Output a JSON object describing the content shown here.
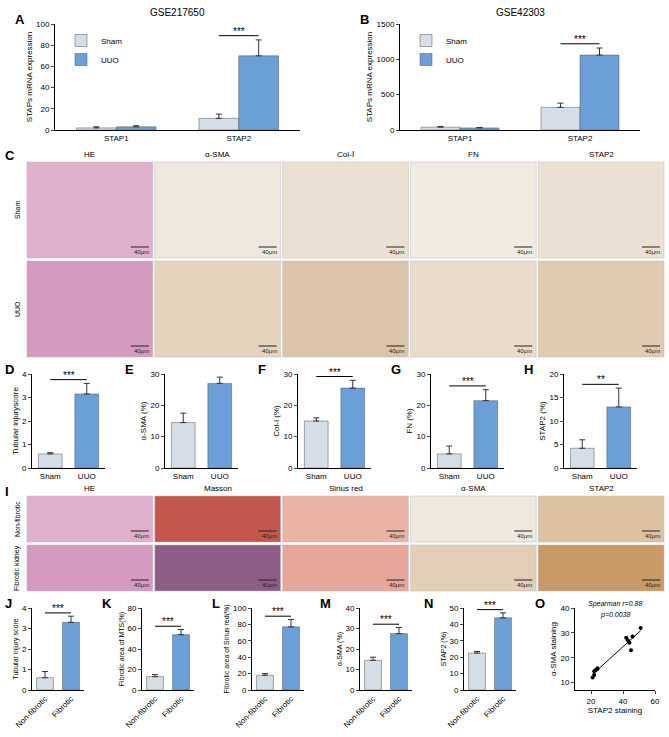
{
  "chart_data": [
    {
      "panel": "A",
      "type": "bar",
      "title": "GSE217650",
      "y_label": "STAPs mRNA expression",
      "categories": [
        "STAP1",
        "STAP2"
      ],
      "series": [
        {
          "name": "Sham",
          "color": "#d5dde6",
          "values": [
            2,
            11
          ],
          "errors": [
            1,
            4
          ]
        },
        {
          "name": "UUO",
          "color": "#6b9fd8",
          "values": [
            3,
            70
          ],
          "errors": [
            1,
            15
          ]
        }
      ],
      "ylim": [
        0,
        100
      ],
      "yticks": [
        0,
        20,
        40,
        60,
        80,
        100
      ],
      "legend": "upper left",
      "significance": [
        {
          "category": "STAP2",
          "label": "***"
        }
      ]
    },
    {
      "panel": "B",
      "type": "bar",
      "title": "GSE42303",
      "y_label": "STAPs mRNA expression",
      "categories": [
        "STAP1",
        "STAP2"
      ],
      "series": [
        {
          "name": "Sham",
          "color": "#d5dde6",
          "values": [
            40,
            320
          ],
          "errors": [
            10,
            60
          ]
        },
        {
          "name": "UUO",
          "color": "#6b9fd8",
          "values": [
            30,
            1060
          ],
          "errors": [
            5,
            100
          ]
        }
      ],
      "ylim": [
        0,
        1500
      ],
      "yticks": [
        0,
        500,
        1000,
        1500
      ],
      "legend": "upper left",
      "significance": [
        {
          "category": "STAP2",
          "label": "***"
        }
      ]
    },
    {
      "panel": "D",
      "type": "bar",
      "y_label": "Tubular injuryscore",
      "categories": [
        "Sham",
        "UUO"
      ],
      "values": [
        0.6,
        3.15
      ],
      "errors": [
        0.05,
        0.45
      ],
      "colors": [
        "#d5dde6",
        "#6b9fd8"
      ],
      "ylim": [
        0,
        4
      ],
      "yticks": [
        0,
        1,
        2,
        3,
        4
      ],
      "significance": "***"
    },
    {
      "panel": "E",
      "type": "bar",
      "y_label": "α-SMA (%)",
      "categories": [
        "Sham",
        "UUO"
      ],
      "values": [
        14.5,
        27
      ],
      "errors": [
        3,
        2
      ],
      "colors": [
        "#d5dde6",
        "#6b9fd8"
      ],
      "ylim": [
        0,
        30
      ],
      "yticks": [
        0,
        10,
        20,
        30
      ],
      "significance": "***"
    },
    {
      "panel": "F",
      "type": "bar",
      "y_label": "Col-I (%)",
      "categories": [
        "Sham",
        "UUO"
      ],
      "values": [
        15,
        25.5
      ],
      "errors": [
        1,
        2.5
      ],
      "colors": [
        "#d5dde6",
        "#6b9fd8"
      ],
      "ylim": [
        0,
        30
      ],
      "yticks": [
        0,
        10,
        20,
        30
      ],
      "significance": "***"
    },
    {
      "panel": "G",
      "type": "bar",
      "y_label": "FN (%)",
      "categories": [
        "Sham",
        "UUO"
      ],
      "values": [
        4.5,
        21.5
      ],
      "errors": [
        2.5,
        3.5
      ],
      "colors": [
        "#d5dde6",
        "#6b9fd8"
      ],
      "ylim": [
        0,
        30
      ],
      "yticks": [
        0,
        10,
        20,
        30
      ],
      "significance": "***"
    },
    {
      "panel": "H",
      "type": "bar",
      "y_label": "STAP2 (%)",
      "categories": [
        "Sham",
        "UUO"
      ],
      "values": [
        4.2,
        13
      ],
      "errors": [
        1.8,
        4
      ],
      "colors": [
        "#d5dde6",
        "#6b9fd8"
      ],
      "ylim": [
        0,
        20
      ],
      "yticks": [
        0,
        5,
        10,
        15,
        20
      ],
      "significance": "**"
    },
    {
      "panel": "J",
      "type": "bar",
      "y_label": "Tubular injury score",
      "categories": [
        "Non-fibrotic",
        "Fibrotic"
      ],
      "values": [
        0.6,
        3.3
      ],
      "errors": [
        0.3,
        0.3
      ],
      "colors": [
        "#d5dde6",
        "#6b9fd8"
      ],
      "ylim": [
        0,
        4
      ],
      "yticks": [
        0,
        1,
        2,
        3,
        4
      ],
      "significance": "***"
    },
    {
      "panel": "K",
      "type": "bar",
      "y_label": "Fibrotic area of MTS(%)",
      "categories": [
        "Non-fibrotic",
        "Fibrotic"
      ],
      "values": [
        13,
        54
      ],
      "errors": [
        2,
        5
      ],
      "colors": [
        "#d5dde6",
        "#6b9fd8"
      ],
      "ylim": [
        0,
        80
      ],
      "yticks": [
        0,
        20,
        40,
        60,
        80
      ],
      "significance": "***"
    },
    {
      "panel": "L",
      "type": "bar",
      "y_label": "Fibrotic area of Sirius red(%)",
      "categories": [
        "Non-fibrotic",
        "Fibrotic"
      ],
      "values": [
        18,
        77
      ],
      "errors": [
        2,
        9
      ],
      "colors": [
        "#d5dde6",
        "#6b9fd8"
      ],
      "ylim": [
        0,
        100
      ],
      "yticks": [
        0,
        20,
        40,
        60,
        80,
        100
      ],
      "significance": "***"
    },
    {
      "panel": "M",
      "type": "bar",
      "y_label": "α-SMA (%)",
      "categories": [
        "Non-fibrotic",
        "Fibrotic"
      ],
      "values": [
        14.5,
        27.5
      ],
      "errors": [
        1.5,
        3
      ],
      "colors": [
        "#d5dde6",
        "#6b9fd8"
      ],
      "ylim": [
        0,
        40
      ],
      "yticks": [
        0,
        10,
        20,
        30,
        40
      ],
      "significance": "***"
    },
    {
      "panel": "N",
      "type": "bar",
      "y_label": "STAP2 (%)",
      "categories": [
        "Non-fibrotic",
        "Fibrotic"
      ],
      "values": [
        22.5,
        44
      ],
      "errors": [
        1,
        3
      ],
      "colors": [
        "#d5dde6",
        "#6b9fd8"
      ],
      "ylim": [
        0,
        50
      ],
      "yticks": [
        0,
        10,
        20,
        30,
        40,
        50
      ],
      "significance": "***"
    },
    {
      "panel": "O",
      "type": "scatter",
      "x_label": "STAP2 staining",
      "y_label": "α-SMA staining",
      "x": [
        21,
        22,
        22,
        23,
        24,
        24,
        42,
        43,
        44,
        45,
        46,
        51
      ],
      "y": [
        12,
        13,
        14.5,
        15,
        15.5,
        15.8,
        28,
        27,
        26,
        23,
        28.5,
        32
      ],
      "color": "#000000",
      "marker": "circle",
      "xlim": [
        10,
        60
      ],
      "ylim": [
        7,
        40
      ],
      "xticks": [
        20,
        40,
        60
      ],
      "yticks": [
        10,
        20,
        30,
        40
      ],
      "annotations": [
        "Spearman r=0.88",
        "p=0.0038"
      ]
    }
  ],
  "image_panels": [
    {
      "panel": "C",
      "columns": [
        "HE",
        "α-SMA",
        "Col-Ⅰ",
        "FN",
        "STAP2"
      ],
      "rows": [
        "Sham",
        "UUO"
      ],
      "scale_bar": "40μm"
    },
    {
      "panel": "I",
      "columns": [
        "HE",
        "Masson",
        "Sirius red",
        "α-SMA",
        "STAP2"
      ],
      "rows": [
        "Non-fibrotic",
        "Fibrotic kidney"
      ],
      "scale_bar": "40μm"
    }
  ]
}
